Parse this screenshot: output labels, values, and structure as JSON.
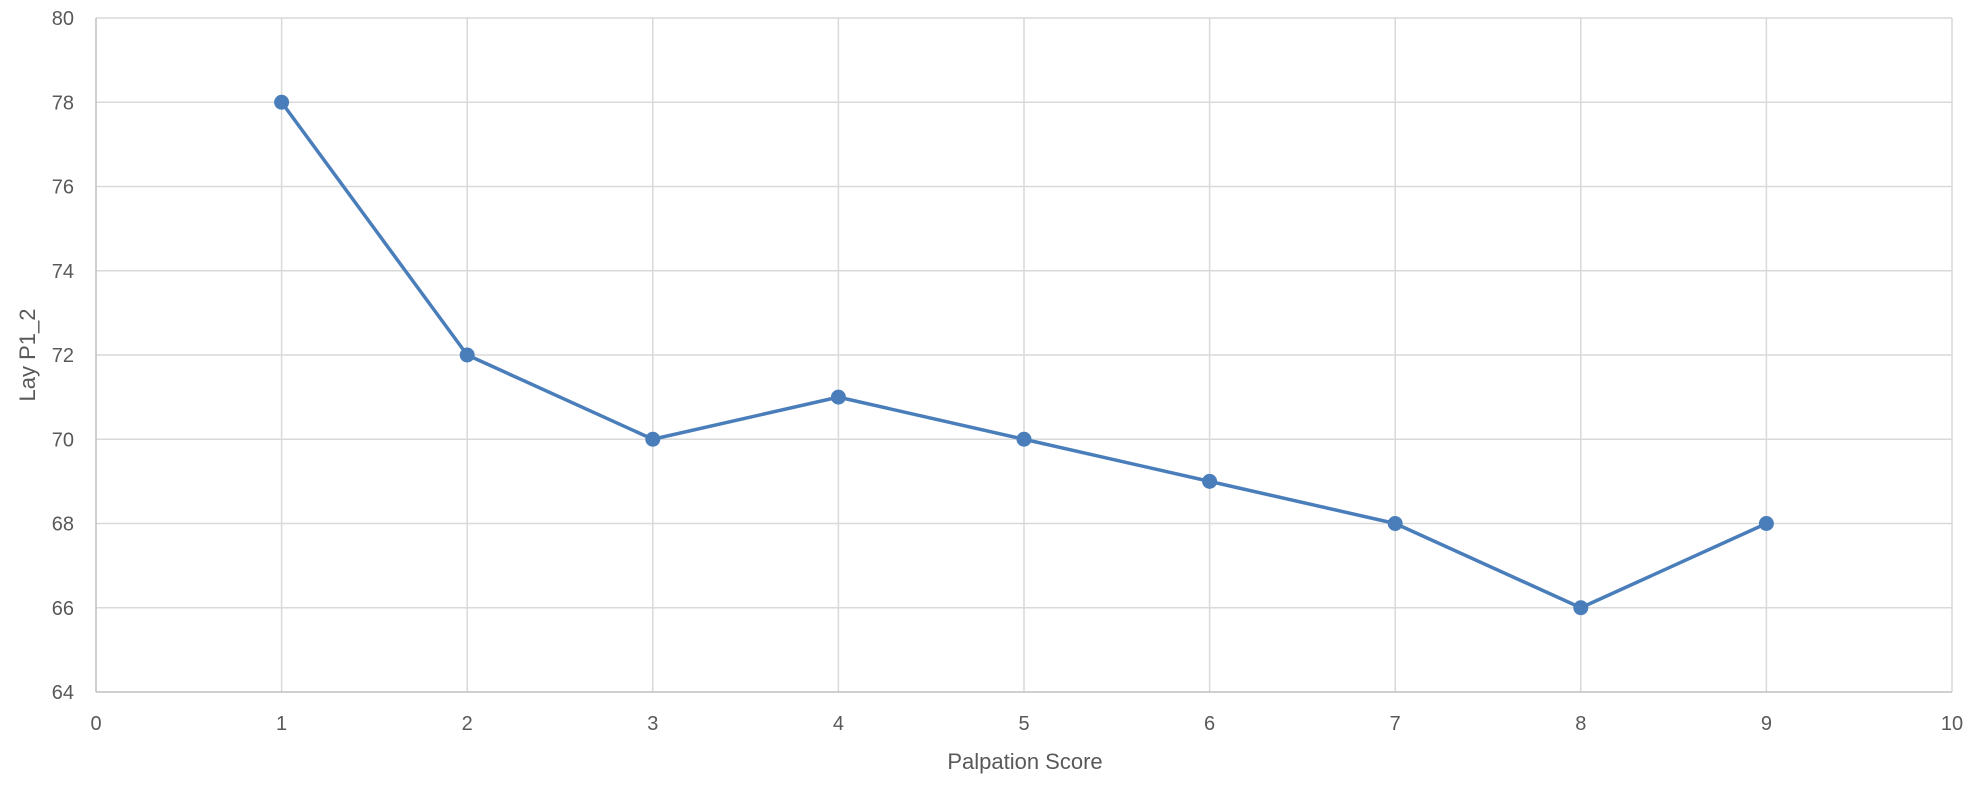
{
  "chart_data": {
    "type": "scatter",
    "title": "",
    "xlabel": "Palpation Score",
    "ylabel": "Lay P1_2",
    "xlim": [
      0,
      10
    ],
    "ylim": [
      64,
      80
    ],
    "x_ticks": [
      0,
      1,
      2,
      3,
      4,
      5,
      6,
      7,
      8,
      9,
      10
    ],
    "y_ticks": [
      64,
      66,
      68,
      70,
      72,
      74,
      76,
      78,
      80
    ],
    "grid": true,
    "legend": "none",
    "series": [
      {
        "x": [
          1,
          2,
          3,
          4,
          5,
          6,
          7,
          8,
          9
        ],
        "y": [
          78,
          72,
          70,
          71,
          70,
          69,
          68,
          66,
          68
        ],
        "color": "#4a7ebb",
        "mode": "lines+markers"
      }
    ]
  },
  "colors": {
    "grid": "#d9d9d9",
    "axis": "#bfbfbf",
    "text": "#595959",
    "series": "#4a7ebb"
  }
}
